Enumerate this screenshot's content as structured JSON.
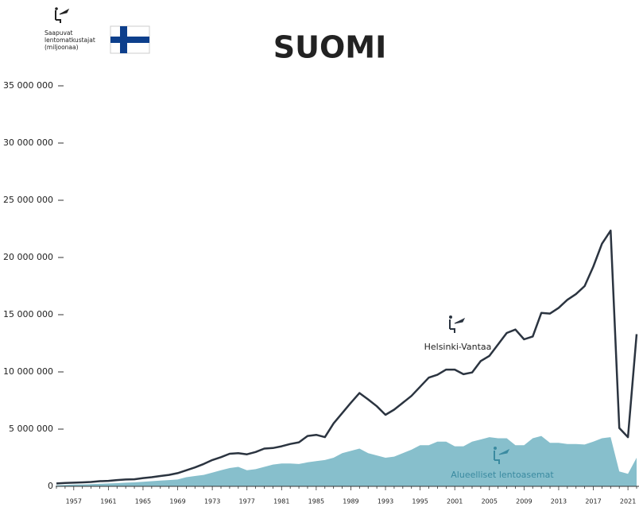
{
  "chart_data": {
    "type": "line-area",
    "title": "SUOMI",
    "legend_text": [
      "Saapuvat",
      "lentomatkustajat",
      "(miljoonaa)"
    ],
    "categories": [
      null,
      null,
      "1957",
      null,
      null,
      null,
      "1961",
      null,
      null,
      null,
      "1965",
      null,
      null,
      null,
      "1969",
      null,
      null,
      null,
      "1973",
      null,
      null,
      null,
      "1977",
      null,
      null,
      null,
      "1981",
      null,
      null,
      null,
      "1985",
      null,
      null,
      null,
      "1989",
      null,
      null,
      null,
      "1993",
      null,
      null,
      null,
      "1995",
      null,
      null,
      null,
      "2001",
      null,
      null,
      null,
      "2005",
      null,
      null,
      null,
      "2009",
      null,
      null,
      null,
      "2013",
      null,
      null,
      null,
      "2017",
      null,
      null,
      null,
      "2021",
      null
    ],
    "series": [
      {
        "name": "Helsinki-Vantaa",
        "color": "#2b3440",
        "style": "line",
        "values": [
          250000,
          300000,
          320000,
          350000,
          380000,
          450000,
          480000,
          550000,
          600000,
          620000,
          720000,
          800000,
          900000,
          1000000,
          1150000,
          1400000,
          1650000,
          1950000,
          2300000,
          2550000,
          2850000,
          2900000,
          2800000,
          3000000,
          3300000,
          3350000,
          3500000,
          3700000,
          3850000,
          4400000,
          4500000,
          4300000,
          5500000,
          6400000,
          7300000,
          8150000,
          7600000,
          7000000,
          6250000,
          6700000,
          7300000,
          7900000,
          8700000,
          9500000,
          9750000,
          10200000,
          10200000,
          9800000,
          9950000,
          10950000,
          11400000,
          12400000,
          13400000,
          13700000,
          12850000,
          13100000,
          15150000,
          15100000,
          15600000,
          16300000,
          16800000,
          17500000,
          19200000,
          21200000,
          22350000,
          5100000,
          4300000,
          13300000
        ]
      },
      {
        "name": "Alueelliset lentoasemat",
        "color": "#87bfcc",
        "style": "area",
        "values": [
          100000,
          120000,
          150000,
          170000,
          190000,
          220000,
          250000,
          280000,
          320000,
          350000,
          400000,
          450000,
          500000,
          550000,
          600000,
          800000,
          900000,
          1000000,
          1200000,
          1400000,
          1600000,
          1700000,
          1400000,
          1500000,
          1700000,
          1900000,
          2000000,
          2000000,
          1950000,
          2100000,
          2200000,
          2300000,
          2500000,
          2900000,
          3100000,
          3300000,
          2900000,
          2700000,
          2500000,
          2600000,
          2900000,
          3200000,
          3600000,
          3600000,
          3900000,
          3900000,
          3500000,
          3500000,
          3900000,
          4100000,
          4300000,
          4200000,
          4200000,
          3600000,
          3600000,
          4200000,
          4400000,
          3800000,
          3800000,
          3700000,
          3700000,
          3650000,
          3900000,
          4200000,
          4300000,
          1300000,
          1100000,
          2500000
        ]
      }
    ],
    "ylim": [
      0,
      35000000
    ],
    "yticks": [
      0,
      {
        "value": 5000000,
        "label": "5 000 000"
      },
      {
        "value": 10000000,
        "label": "10 000 000"
      },
      {
        "value": 15000000,
        "label": "15 000 000"
      },
      {
        "value": 20000000,
        "label": "20 000 000"
      },
      {
        "value": 25000000,
        "label": "25 000 000"
      },
      {
        "value": 30000000,
        "label": "30 000 000"
      },
      {
        "value": 35000000,
        "label": "35 000 000"
      }
    ]
  }
}
